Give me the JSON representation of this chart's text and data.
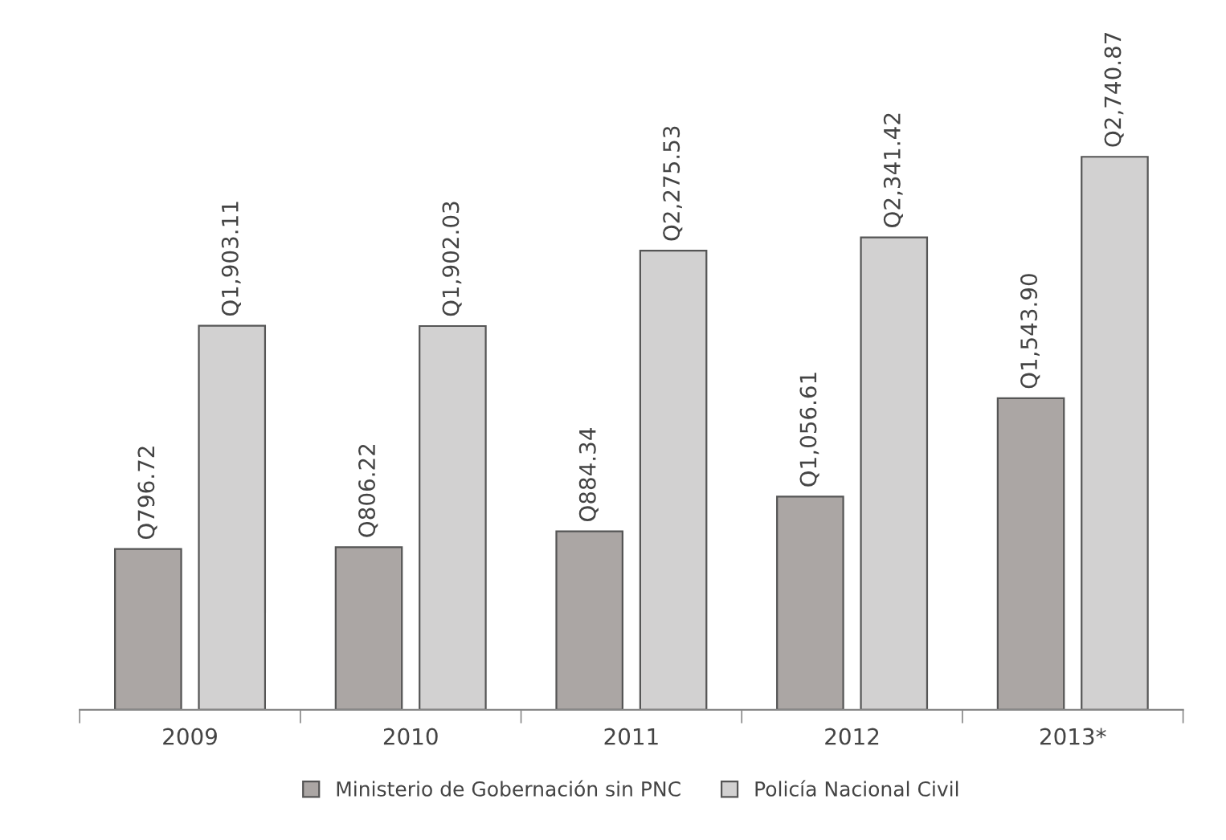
{
  "chart_data": {
    "type": "bar",
    "categories": [
      "2009",
      "2010",
      "2011",
      "2012",
      "2013*"
    ],
    "series": [
      {
        "name": "Ministerio de Gobernación sin PNC",
        "color": "#aba6a4",
        "values": [
          796.72,
          806.22,
          884.34,
          1056.61,
          1543.9
        ],
        "value_labels": [
          "Q796.72",
          "Q806.22",
          "Q884.34",
          "Q1,056.61",
          "Q1,543.90"
        ]
      },
      {
        "name": "Policía Nacional Civil",
        "color": "#d2d1d1",
        "values": [
          1903.11,
          1902.03,
          2275.53,
          2341.42,
          2740.87
        ],
        "value_labels": [
          "Q1,903.11",
          "Q1,902.03",
          "Q2,275.53",
          "Q2,341.42",
          "Q2,740.87"
        ]
      }
    ],
    "legend": "bottom",
    "grid": false
  }
}
